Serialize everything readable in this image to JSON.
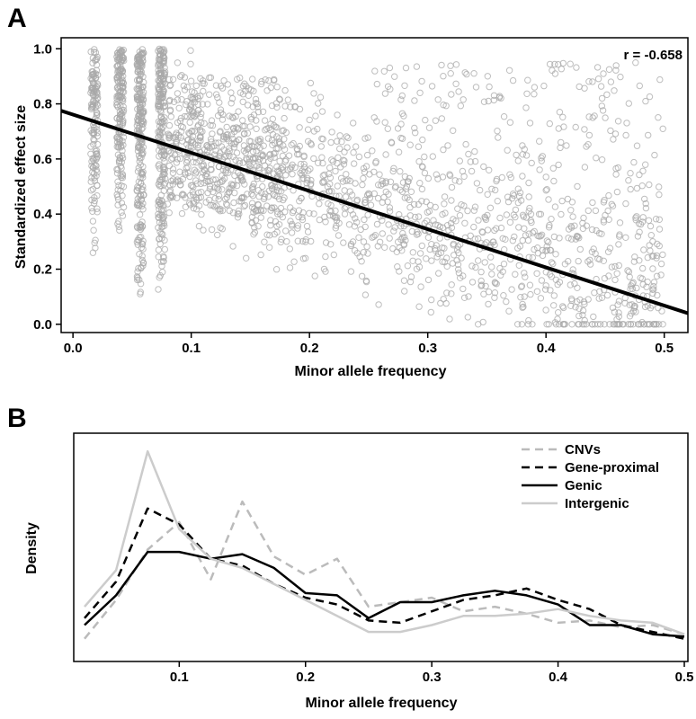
{
  "panels": {
    "a_label": "A",
    "b_label": "B"
  },
  "chart_data": [
    {
      "type": "scatter",
      "panel": "A",
      "title": "",
      "xlabel": "Minor allele frequency",
      "ylabel": "Standardized effect size",
      "xlim": [
        -0.01,
        0.52
      ],
      "ylim": [
        -0.03,
        1.04
      ],
      "xticks": [
        0.0,
        0.1,
        0.2,
        0.3,
        0.4,
        0.5
      ],
      "xtick_labels": [
        "0.0",
        "0.1",
        "0.2",
        "0.3",
        "0.4",
        "0.5"
      ],
      "yticks": [
        0.0,
        0.2,
        0.4,
        0.6,
        0.8,
        1.0
      ],
      "ytick_labels": [
        "0.0",
        "0.2",
        "0.4",
        "0.6",
        "0.8",
        "1.0"
      ],
      "annotation": "r = -0.658",
      "grid": false,
      "point_color": "#a8a8a8",
      "line_color": "#000000",
      "regression_line": {
        "x": [
          -0.01,
          0.52
        ],
        "y": [
          0.775,
          0.04
        ]
      },
      "point_clusters": [
        {
          "x": 0.018,
          "y_min": 0.2,
          "y_max": 1.0
        },
        {
          "x": 0.04,
          "y_min": 0.3,
          "y_max": 1.0
        },
        {
          "x": 0.057,
          "y_min": 0.1,
          "y_max": 1.0
        },
        {
          "x": 0.075,
          "y_min": 0.1,
          "y_max": 1.0
        },
        {
          "x_range": [
            0.08,
            0.17
          ],
          "y_range": [
            0.1,
            0.9
          ]
        },
        {
          "x_range": [
            0.13,
            0.25
          ],
          "y_range": [
            0.05,
            0.6
          ]
        },
        {
          "x_range": [
            0.25,
            0.45
          ],
          "y_range": [
            0.0,
            0.55
          ]
        },
        {
          "x_range": [
            0.28,
            0.5
          ],
          "y_range": [
            0.3,
            0.95
          ]
        }
      ]
    },
    {
      "type": "line",
      "panel": "B",
      "title": "",
      "xlabel": "Minor allele frequency",
      "ylabel": "Density",
      "xlim": [
        0.02,
        0.5
      ],
      "ylim": [
        0,
        1
      ],
      "xticks": [
        0.1,
        0.2,
        0.3,
        0.4,
        0.5
      ],
      "xtick_labels": [
        "0.1",
        "0.2",
        "0.3",
        "0.4",
        "0.5"
      ],
      "legend_position": "top-right",
      "grid": false,
      "x": [
        0.025,
        0.05,
        0.075,
        0.1,
        0.125,
        0.15,
        0.175,
        0.2,
        0.225,
        0.25,
        0.275,
        0.3,
        0.325,
        0.35,
        0.375,
        0.4,
        0.425,
        0.45,
        0.475,
        0.5
      ],
      "series": [
        {
          "name": "CNVs",
          "color": "#bbbbbb",
          "dash": "dashed",
          "width": 2.5,
          "values": [
            0.06,
            0.23,
            0.45,
            0.57,
            0.32,
            0.66,
            0.42,
            0.34,
            0.41,
            0.2,
            0.22,
            0.24,
            0.18,
            0.2,
            0.17,
            0.13,
            0.14,
            0.11,
            0.12,
            0.08
          ]
        },
        {
          "name": "Gene-proximal",
          "color": "#000000",
          "dash": "dashed",
          "width": 2.5,
          "values": [
            0.15,
            0.31,
            0.63,
            0.56,
            0.41,
            0.38,
            0.3,
            0.24,
            0.21,
            0.14,
            0.13,
            0.18,
            0.23,
            0.25,
            0.28,
            0.23,
            0.19,
            0.12,
            0.09,
            0.06
          ]
        },
        {
          "name": "Genic",
          "color": "#000000",
          "dash": "solid",
          "width": 2.5,
          "values": [
            0.12,
            0.25,
            0.44,
            0.44,
            0.41,
            0.43,
            0.37,
            0.26,
            0.25,
            0.15,
            0.22,
            0.22,
            0.25,
            0.27,
            0.25,
            0.21,
            0.12,
            0.12,
            0.08,
            0.07
          ]
        },
        {
          "name": "Intergenic",
          "color": "#cccccc",
          "dash": "solid",
          "width": 2.5,
          "values": [
            0.2,
            0.36,
            0.88,
            0.54,
            0.41,
            0.37,
            0.3,
            0.23,
            0.16,
            0.09,
            0.09,
            0.12,
            0.16,
            0.16,
            0.17,
            0.19,
            0.16,
            0.14,
            0.13,
            0.08
          ]
        }
      ]
    }
  ]
}
